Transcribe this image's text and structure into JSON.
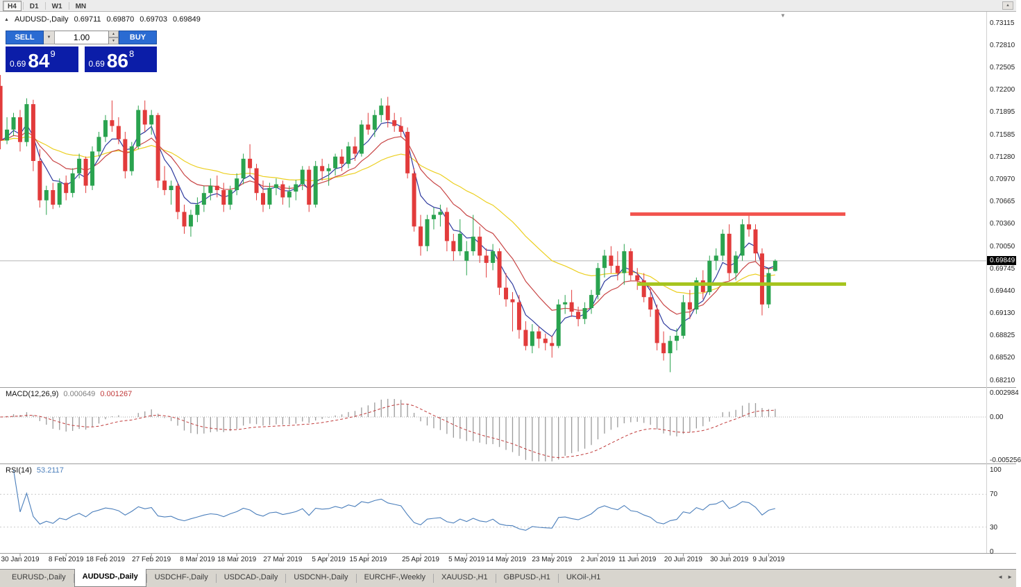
{
  "window": {
    "timeframes": [
      "H4",
      "D1",
      "W1",
      "MN"
    ],
    "pressed_timeframe": "H4"
  },
  "icons": {
    "dropdown": "▼",
    "spin_up": "▲",
    "spin_down": "▼",
    "title_marker": "▲",
    "end_marker": "▼",
    "scroll_up": "▲",
    "tab_left": "◄",
    "tab_right": "►"
  },
  "chart_header": {
    "symbol_period": "AUDUSD-,Daily",
    "open": "0.69711",
    "high": "0.69870",
    "low": "0.69703",
    "close": "0.69849"
  },
  "trade_panel": {
    "sell_label": "SELL",
    "buy_label": "BUY",
    "volume": "1.00",
    "bid": {
      "prefix": "0.69",
      "big": "84",
      "pip": "9"
    },
    "ask": {
      "prefix": "0.69",
      "big": "86",
      "pip": "8"
    }
  },
  "tabs": [
    {
      "label": "EURUSD-,Daily",
      "active": false
    },
    {
      "label": "AUDUSD-,Daily",
      "active": true
    },
    {
      "label": "USDCHF-,Daily",
      "active": false
    },
    {
      "label": "USDCAD-,Daily",
      "active": false
    },
    {
      "label": "USDCNH-,Daily",
      "active": false
    },
    {
      "label": "EURCHF-,Weekly",
      "active": false
    },
    {
      "label": "XAUUSD-,H1",
      "active": false
    },
    {
      "label": "GBPUSD-,H1",
      "active": false
    },
    {
      "label": "UKOil-,H1",
      "active": false
    }
  ],
  "chart_data": {
    "type": "candlestick",
    "symbol": "AUDUSD-",
    "period": "Daily",
    "price_label": "0.69849",
    "bid_line_price": 0.69849,
    "colors": {
      "up": "#2aa34f",
      "down": "#e23b3b"
    },
    "y_ticks": [
      "0.73115",
      "0.72810",
      "0.72505",
      "0.72200",
      "0.71895",
      "0.71585",
      "0.71280",
      "0.70970",
      "0.70665",
      "0.70360",
      "0.70050",
      "0.69745",
      "0.69440",
      "0.69130",
      "0.68825",
      "0.68520",
      "0.68210"
    ],
    "x_labels": [
      {
        "text": "30 Jan 2019",
        "i": 3
      },
      {
        "text": "8 Feb 2019",
        "i": 10
      },
      {
        "text": "18 Feb 2019",
        "i": 16
      },
      {
        "text": "27 Feb 2019",
        "i": 23
      },
      {
        "text": "8 Mar 2019",
        "i": 30
      },
      {
        "text": "18 Mar 2019",
        "i": 36
      },
      {
        "text": "27 Mar 2019",
        "i": 43
      },
      {
        "text": "5 Apr 2019",
        "i": 50
      },
      {
        "text": "15 Apr 2019",
        "i": 56
      },
      {
        "text": "25 Apr 2019",
        "i": 64
      },
      {
        "text": "5 May 2019",
        "i": 71
      },
      {
        "text": "14 May 2019",
        "i": 77
      },
      {
        "text": "23 May 2019",
        "i": 84
      },
      {
        "text": "2 Jun 2019",
        "i": 91
      },
      {
        "text": "11 Jun 2019",
        "i": 97
      },
      {
        "text": "20 Jun 2019",
        "i": 104
      },
      {
        "text": "30 Jun 2019",
        "i": 111
      },
      {
        "text": "9 Jul 2019",
        "i": 117
      }
    ],
    "moving_averages": [
      {
        "period": 30,
        "color": "#eccf1f"
      },
      {
        "period": 12,
        "color": "#c84444"
      },
      {
        "period": 5,
        "color": "#2e3a9e"
      }
    ],
    "h_lines": [
      {
        "name": "resistance",
        "price": 0.7049,
        "color": "#f2544e",
        "thickness": 5,
        "x1": 908,
        "x2": 1218
      },
      {
        "name": "support",
        "price": 0.6953,
        "color": "#a6c41e",
        "thickness": 5,
        "x1": 918,
        "x2": 1219
      }
    ],
    "macd": {
      "label": "MACD(12,26,9)",
      "fast": 12,
      "slow": 26,
      "signal": 9,
      "main_value": "0.000649",
      "signal_value": "0.001267",
      "hist_color": "#9b9b9b",
      "signal_color": "#c03a3a",
      "ticks": [
        {
          "v": 0.002984,
          "label": "0.002984"
        },
        {
          "v": 0,
          "label": "0.00"
        },
        {
          "v": -0.005256,
          "label": "-0.005256"
        }
      ]
    },
    "rsi": {
      "label": "RSI(14)",
      "period": 14,
      "value": "53.2117",
      "color": "#4a7ebb",
      "levels": [
        70,
        30
      ],
      "ticks": [
        {
          "v": 100,
          "label": "100"
        },
        {
          "v": 70,
          "label": "70"
        },
        {
          "v": 30,
          "label": "30"
        },
        {
          "v": 0,
          "label": "0"
        }
      ]
    },
    "candles": [
      [
        0.7225,
        0.724,
        0.7138,
        0.715
      ],
      [
        0.715,
        0.7182,
        0.7145,
        0.7165
      ],
      [
        0.7165,
        0.7188,
        0.7156,
        0.7182
      ],
      [
        0.7182,
        0.7192,
        0.7135,
        0.7148
      ],
      [
        0.7148,
        0.7208,
        0.7142,
        0.72
      ],
      [
        0.72,
        0.7206,
        0.7108,
        0.7122
      ],
      [
        0.7122,
        0.7138,
        0.7058,
        0.7068
      ],
      [
        0.7068,
        0.7088,
        0.7048,
        0.7082
      ],
      [
        0.7082,
        0.7092,
        0.7056,
        0.7062
      ],
      [
        0.7062,
        0.7098,
        0.7058,
        0.7092
      ],
      [
        0.7092,
        0.7102,
        0.7068,
        0.7078
      ],
      [
        0.7078,
        0.7112,
        0.7072,
        0.7105
      ],
      [
        0.7105,
        0.7132,
        0.7098,
        0.7125
      ],
      [
        0.7125,
        0.7128,
        0.7078,
        0.7088
      ],
      [
        0.7088,
        0.7142,
        0.7082,
        0.7135
      ],
      [
        0.7135,
        0.7162,
        0.7128,
        0.7155
      ],
      [
        0.7155,
        0.7185,
        0.7148,
        0.7178
      ],
      [
        0.7178,
        0.7205,
        0.7162,
        0.717
      ],
      [
        0.717,
        0.7182,
        0.7145,
        0.7152
      ],
      [
        0.7152,
        0.7162,
        0.7098,
        0.7108
      ],
      [
        0.7108,
        0.7148,
        0.7102,
        0.7142
      ],
      [
        0.7142,
        0.7198,
        0.7138,
        0.7192
      ],
      [
        0.7192,
        0.7205,
        0.7162,
        0.7172
      ],
      [
        0.7172,
        0.7192,
        0.7158,
        0.7185
      ],
      [
        0.7185,
        0.7188,
        0.7085,
        0.7095
      ],
      [
        0.7095,
        0.7115,
        0.7075,
        0.7082
      ],
      [
        0.7082,
        0.7095,
        0.7062,
        0.7088
      ],
      [
        0.7088,
        0.7092,
        0.7042,
        0.7052
      ],
      [
        0.7052,
        0.7062,
        0.7022,
        0.7032
      ],
      [
        0.7032,
        0.7055,
        0.7018,
        0.7048
      ],
      [
        0.7048,
        0.7072,
        0.7038,
        0.7062
      ],
      [
        0.7062,
        0.7088,
        0.7052,
        0.7078
      ],
      [
        0.7078,
        0.7098,
        0.7068,
        0.7088
      ],
      [
        0.7088,
        0.7102,
        0.7072,
        0.7082
      ],
      [
        0.7082,
        0.7092,
        0.7052,
        0.7062
      ],
      [
        0.7062,
        0.7088,
        0.7055,
        0.7082
      ],
      [
        0.7082,
        0.7105,
        0.7075,
        0.7098
      ],
      [
        0.7098,
        0.7132,
        0.709,
        0.7125
      ],
      [
        0.7125,
        0.7145,
        0.7102,
        0.7112
      ],
      [
        0.7112,
        0.7118,
        0.7068,
        0.7078
      ],
      [
        0.7078,
        0.7095,
        0.7052,
        0.7062
      ],
      [
        0.7062,
        0.7092,
        0.7056,
        0.7085
      ],
      [
        0.7085,
        0.7098,
        0.7075,
        0.709
      ],
      [
        0.709,
        0.7095,
        0.7062,
        0.7072
      ],
      [
        0.7072,
        0.7088,
        0.7058,
        0.708
      ],
      [
        0.708,
        0.7096,
        0.7068,
        0.709
      ],
      [
        0.709,
        0.7115,
        0.7082,
        0.711
      ],
      [
        0.711,
        0.7115,
        0.7052,
        0.7062
      ],
      [
        0.7062,
        0.7122,
        0.7058,
        0.7115
      ],
      [
        0.7115,
        0.7125,
        0.7095,
        0.7108
      ],
      [
        0.7108,
        0.7118,
        0.7088,
        0.7112
      ],
      [
        0.7112,
        0.7132,
        0.7102,
        0.7128
      ],
      [
        0.7128,
        0.7138,
        0.7108,
        0.7118
      ],
      [
        0.7118,
        0.7148,
        0.7112,
        0.7142
      ],
      [
        0.7142,
        0.7155,
        0.7122,
        0.7132
      ],
      [
        0.7132,
        0.7178,
        0.7128,
        0.7172
      ],
      [
        0.7172,
        0.7188,
        0.7158,
        0.7165
      ],
      [
        0.7165,
        0.7192,
        0.7155,
        0.7185
      ],
      [
        0.7185,
        0.7208,
        0.7175,
        0.7198
      ],
      [
        0.7198,
        0.721,
        0.7168,
        0.7178
      ],
      [
        0.7178,
        0.7188,
        0.7162,
        0.717
      ],
      [
        0.717,
        0.7182,
        0.7155,
        0.7162
      ],
      [
        0.7162,
        0.7168,
        0.7098,
        0.7105
      ],
      [
        0.7105,
        0.7112,
        0.7025,
        0.7032
      ],
      [
        0.7032,
        0.7048,
        0.6992,
        0.7005
      ],
      [
        0.7005,
        0.7048,
        0.6998,
        0.7042
      ],
      [
        0.7042,
        0.7058,
        0.7028,
        0.7048
      ],
      [
        0.7048,
        0.7062,
        0.7032,
        0.7052
      ],
      [
        0.7052,
        0.7058,
        0.6998,
        0.7012
      ],
      [
        0.7012,
        0.7022,
        0.6985,
        0.6998
      ],
      [
        0.6998,
        0.7042,
        0.6992,
        0.7022
      ],
      [
        0.6985,
        0.7012,
        0.6965,
        0.6998
      ],
      [
        0.6998,
        0.7048,
        0.6992,
        0.7018
      ],
      [
        0.7018,
        0.7032,
        0.6982,
        0.6992
      ],
      [
        0.6992,
        0.7002,
        0.6962,
        0.6982
      ],
      [
        0.6982,
        0.7008,
        0.6972,
        0.6998
      ],
      [
        0.6998,
        0.7002,
        0.6938,
        0.6948
      ],
      [
        0.6948,
        0.6968,
        0.6922,
        0.6932
      ],
      [
        0.6932,
        0.6942,
        0.6888,
        0.6928
      ],
      [
        0.6928,
        0.6938,
        0.6878,
        0.689
      ],
      [
        0.689,
        0.6902,
        0.6862,
        0.6868
      ],
      [
        0.6868,
        0.6898,
        0.6858,
        0.6888
      ],
      [
        0.6888,
        0.6895,
        0.6865,
        0.6878
      ],
      [
        0.6878,
        0.6885,
        0.6862,
        0.6872
      ],
      [
        0.6872,
        0.6882,
        0.6852,
        0.6868
      ],
      [
        0.6868,
        0.6932,
        0.6865,
        0.6925
      ],
      [
        0.6925,
        0.6938,
        0.6912,
        0.6928
      ],
      [
        0.6928,
        0.6945,
        0.6908,
        0.6915
      ],
      [
        0.6915,
        0.6922,
        0.6895,
        0.6905
      ],
      [
        0.6905,
        0.6928,
        0.6898,
        0.692
      ],
      [
        0.692,
        0.6945,
        0.6912,
        0.6938
      ],
      [
        0.6938,
        0.6982,
        0.6932,
        0.6975
      ],
      [
        0.6975,
        0.7,
        0.6962,
        0.6992
      ],
      [
        0.6992,
        0.7005,
        0.6968,
        0.6978
      ],
      [
        0.6978,
        0.6998,
        0.6958,
        0.6968
      ],
      [
        0.6968,
        0.7008,
        0.6952,
        0.6998
      ],
      [
        0.6998,
        0.7002,
        0.6958,
        0.6965
      ],
      [
        0.6965,
        0.6975,
        0.6945,
        0.6958
      ],
      [
        0.6958,
        0.6968,
        0.6928,
        0.6935
      ],
      [
        0.6935,
        0.6948,
        0.6908,
        0.6918
      ],
      [
        0.6918,
        0.6925,
        0.6862,
        0.6872
      ],
      [
        0.6872,
        0.6888,
        0.6848,
        0.6858
      ],
      [
        0.6858,
        0.6882,
        0.6832,
        0.6875
      ],
      [
        0.6875,
        0.6892,
        0.6862,
        0.6882
      ],
      [
        0.6882,
        0.6938,
        0.6878,
        0.6928
      ],
      [
        0.6928,
        0.6945,
        0.6905,
        0.6918
      ],
      [
        0.6918,
        0.6962,
        0.6912,
        0.6958
      ],
      [
        0.6958,
        0.6972,
        0.6932,
        0.6942
      ],
      [
        0.6942,
        0.6992,
        0.6938,
        0.6985
      ],
      [
        0.6985,
        0.7002,
        0.6972,
        0.6992
      ],
      [
        0.6992,
        0.7028,
        0.6985,
        0.7022
      ],
      [
        0.7022,
        0.7035,
        0.6958,
        0.6968
      ],
      [
        0.6968,
        0.6998,
        0.6958,
        0.6992
      ],
      [
        0.6992,
        0.7042,
        0.6985,
        0.7035
      ],
      [
        0.7035,
        0.7048,
        0.7018,
        0.7028
      ],
      [
        0.7028,
        0.7035,
        0.6985,
        0.6995
      ],
      [
        0.6995,
        0.7002,
        0.691,
        0.6925
      ],
      [
        0.6925,
        0.6975,
        0.692,
        0.6968
      ],
      [
        0.69711,
        0.6987,
        0.69703,
        0.69849
      ]
    ]
  }
}
